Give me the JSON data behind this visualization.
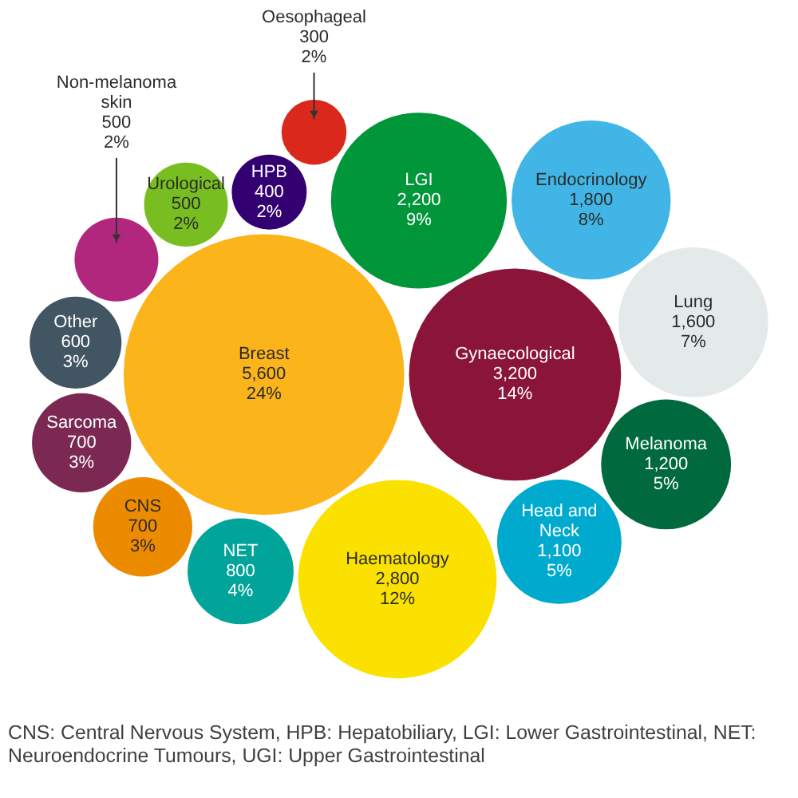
{
  "chart_data": {
    "type": "other",
    "categories": [
      "Breast",
      "Gynaecological",
      "LGI",
      "Endocrinology",
      "Lung",
      "Melanoma",
      "Head and Neck",
      "Haematology",
      "NET",
      "CNS",
      "Sarcoma",
      "Other",
      "Non-melanoma skin",
      "Urological",
      "HPB",
      "Oesophageal"
    ],
    "values": [
      5600,
      3200,
      2200,
      1800,
      1600,
      1200,
      1100,
      2800,
      800,
      700,
      700,
      600,
      500,
      500,
      400,
      300
    ],
    "value_labels": [
      "5,600\n24%",
      "3,200\n14%",
      "2,200\n9%",
      "1,800\n8%",
      "1,600\n7%",
      "1,200\n5%",
      "1,100\n5%",
      "2,800\n12%",
      "800\n4%",
      "700\n3%",
      "700\n3%",
      "600\n3%",
      "500\n2%",
      "500\n2%",
      "400\n2%",
      "300\n2%"
    ],
    "colors": [
      "#fbb41a",
      "#8a1538",
      "#009639",
      "#41b6e6",
      "#e4eaea",
      "#00693e",
      "#00a9ce",
      "#fae100",
      "#00a499",
      "#ed8b00",
      "#7b2952",
      "#425563",
      "#b1277e",
      "#78be20",
      "#330072",
      "#da291c"
    ],
    "annotations": [
      "CNS: Central Nervous System, HPB: Hepatobiliary, LGI: Lower Gastrointestinal, NET: Neuroendocrine Tumours, UGI: Upper Gastrointestinal"
    ]
  }
}
